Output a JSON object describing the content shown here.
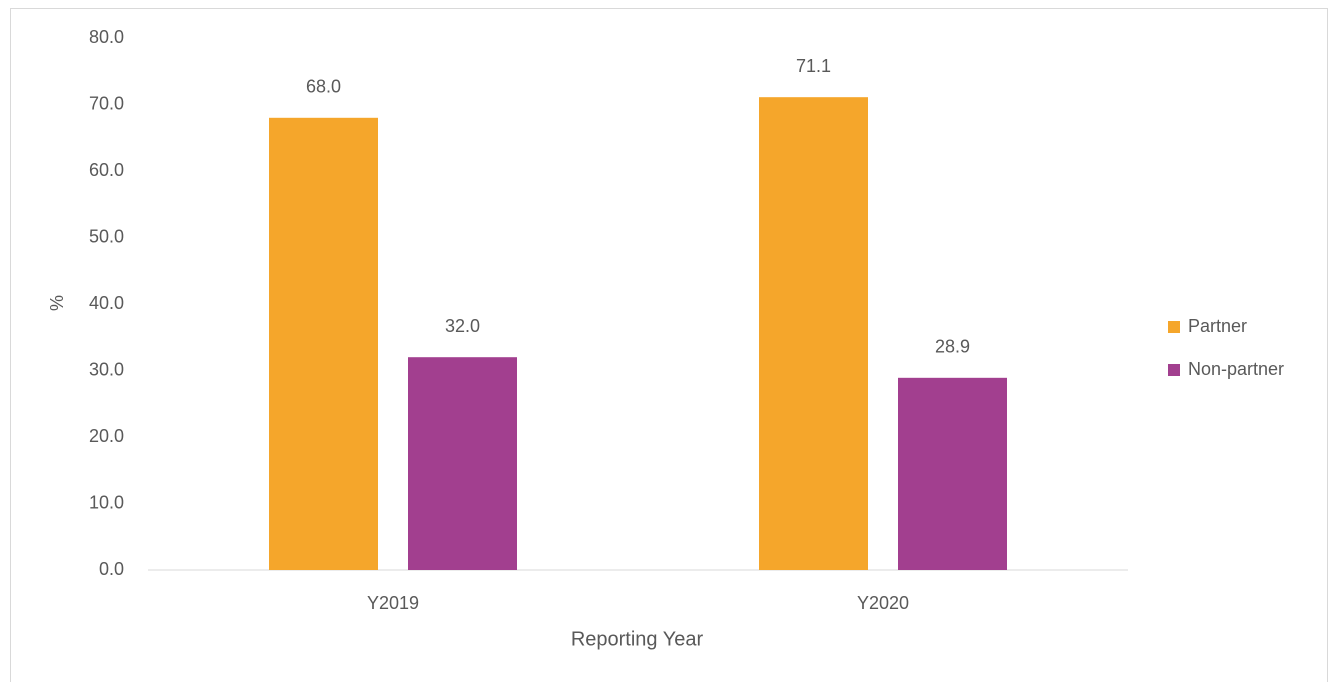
{
  "chart_data": {
    "type": "bar",
    "x_label": "Reporting Year",
    "y_label": "%",
    "categories": [
      "Y2019",
      "Y2020"
    ],
    "series": [
      {
        "name": "Partner",
        "color": "#f5a62b",
        "values": [
          68.0,
          71.1
        ],
        "value_labels": [
          "68.0",
          "71.1"
        ]
      },
      {
        "name": "Non-partner",
        "color": "#a23f8f",
        "values": [
          32.0,
          28.9
        ],
        "value_labels": [
          "32.0",
          "28.9"
        ]
      }
    ],
    "ylim": [
      0,
      80
    ],
    "yticks": [
      {
        "value": 0,
        "label": "0.0"
      },
      {
        "value": 10,
        "label": "10.0"
      },
      {
        "value": 20,
        "label": "20.0"
      },
      {
        "value": 30,
        "label": "30.0"
      },
      {
        "value": 40,
        "label": "40.0"
      },
      {
        "value": 50,
        "label": "50.0"
      },
      {
        "value": 60,
        "label": "60.0"
      },
      {
        "value": 70,
        "label": "70.0"
      },
      {
        "value": 80,
        "label": "80.0"
      }
    ],
    "grid": false,
    "legend": "right"
  }
}
